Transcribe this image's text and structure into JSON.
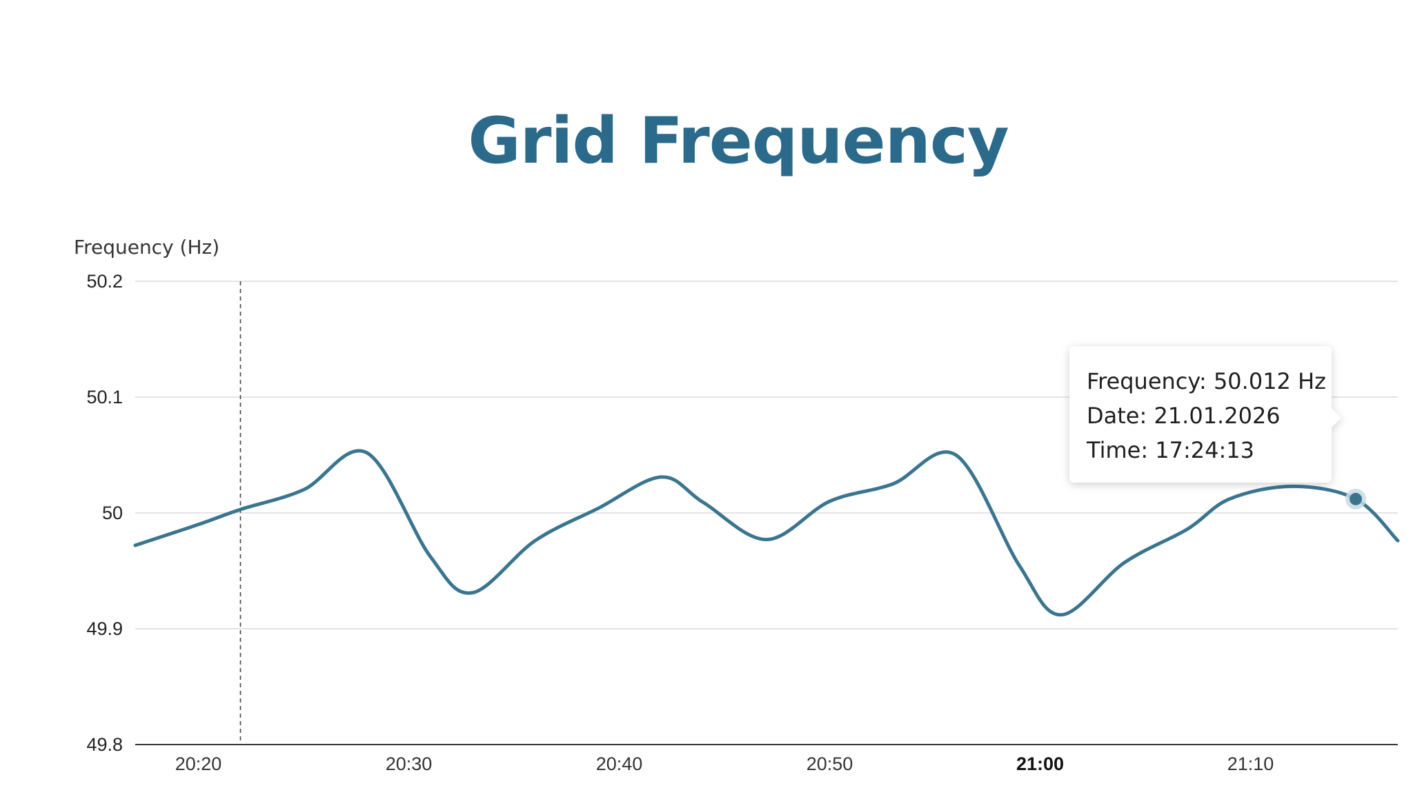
{
  "chart_data": {
    "type": "line",
    "title": "Grid Frequency",
    "xlabel": "",
    "ylabel": "Frequency (Hz)",
    "ylim": [
      49.8,
      50.2
    ],
    "yticks": [
      "50.2",
      "50.1",
      "50",
      "49.9",
      "49.8"
    ],
    "xlim": [
      "20:17",
      "21:17"
    ],
    "xticks": [
      {
        "label": "20:20",
        "bold": false
      },
      {
        "label": "20:30",
        "bold": false
      },
      {
        "label": "20:40",
        "bold": false
      },
      {
        "label": "20:50",
        "bold": false
      },
      {
        "label": "21:00",
        "bold": true
      },
      {
        "label": "21:10",
        "bold": false
      }
    ],
    "grid": true,
    "line_color": "#3a7590",
    "title_color": "#2b6a8a",
    "crosshair_x": "20:22",
    "x": [
      "20:17",
      "20:20",
      "20:22",
      "20:25",
      "20:28",
      "20:31",
      "20:33",
      "20:36",
      "20:39",
      "20:42",
      "20:44",
      "20:47",
      "20:50",
      "20:53",
      "20:56",
      "20:59",
      "21:01",
      "21:04",
      "21:07",
      "21:09",
      "21:12",
      "21:15",
      "21:17"
    ],
    "series": [
      {
        "values": [
          49.972,
          49.99,
          50.003,
          50.02,
          50.052,
          49.963,
          49.931,
          49.976,
          50.004,
          50.031,
          50.009,
          49.977,
          50.01,
          50.025,
          50.05,
          49.955,
          49.912,
          49.957,
          49.986,
          50.012,
          50.023,
          50.012,
          49.976
        ]
      }
    ],
    "highlight": {
      "x": "21:15",
      "y": 50.012
    },
    "tooltip": {
      "lines": [
        "Frequency: 50.012 Hz",
        "Date: 21.01.2026",
        "Time: 17:24:13"
      ]
    }
  }
}
